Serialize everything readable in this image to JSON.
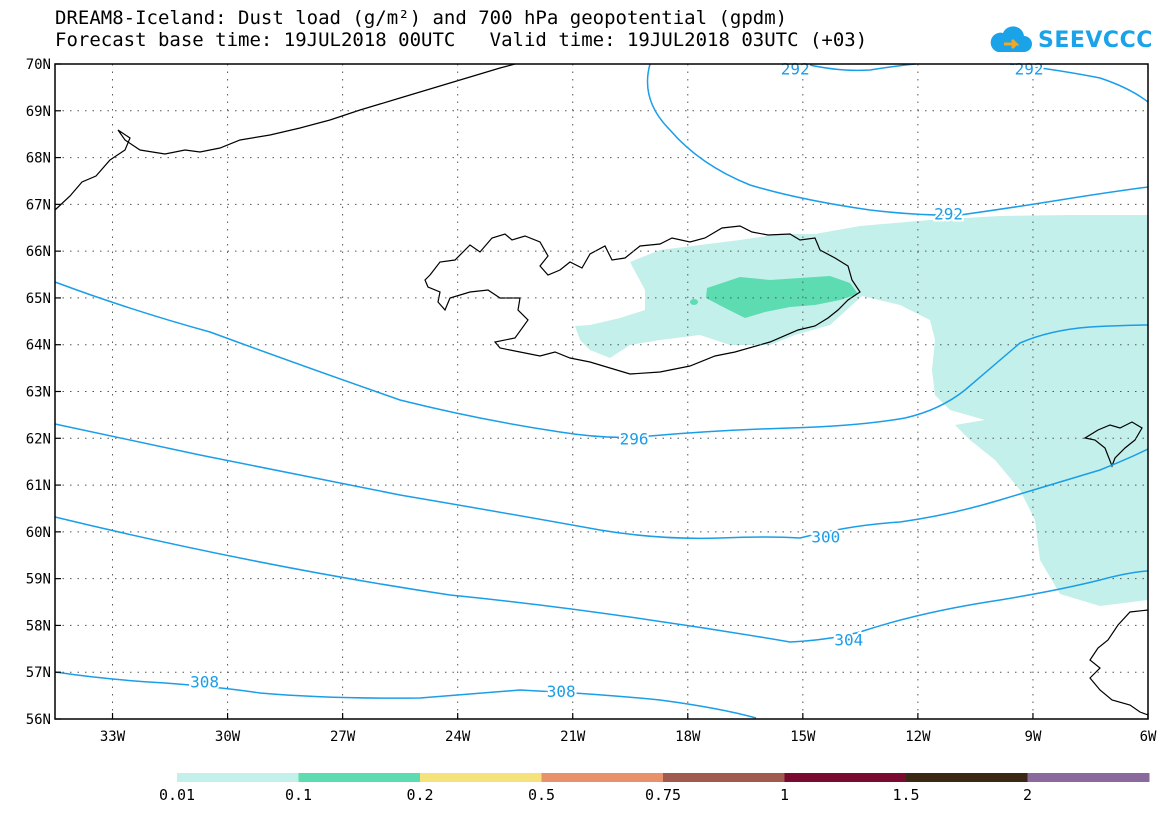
{
  "title_line1": "DREAM8-Iceland: Dust load (g/m²) and 700 hPa geopotential (gpdm)",
  "title_line2": "Forecast base time: 19JUL2018 00UTC   Valid time: 19JUL2018 03UTC (+03)",
  "logo_text": "SEEVCCC",
  "lat_labels": [
    "70N",
    "69N",
    "68N",
    "67N",
    "66N",
    "65N",
    "64N",
    "63N",
    "62N",
    "61N",
    "60N",
    "59N",
    "58N",
    "57N",
    "56N"
  ],
  "lon_labels": [
    "33W",
    "30W",
    "27W",
    "24W",
    "21W",
    "18W",
    "15W",
    "12W",
    "9W",
    "6W"
  ],
  "contour_labels": [
    {
      "value": "292",
      "lon": -15.2,
      "lat": 69.9
    },
    {
      "value": "292",
      "lon": -9.1,
      "lat": 69.9
    },
    {
      "value": "292",
      "lon": -11.2,
      "lat": 66.8
    },
    {
      "value": "296",
      "lon": -19.4,
      "lat": 62.0
    },
    {
      "value": "300",
      "lon": -14.4,
      "lat": 59.9
    },
    {
      "value": "304",
      "lon": -13.8,
      "lat": 57.7
    },
    {
      "value": "308",
      "lon": -30.6,
      "lat": 56.8
    },
    {
      "value": "308",
      "lon": -21.3,
      "lat": 56.6
    }
  ],
  "colorbar": {
    "colors": [
      "#c3f0ea",
      "#5cdcb0",
      "#f5e27a",
      "#e8916b",
      "#a15a4e",
      "#7b0a30",
      "#3b2814",
      "#8a6a9c"
    ],
    "labels": [
      {
        "text": "0.01",
        "pos": 0
      },
      {
        "text": "0.1",
        "pos": 1
      },
      {
        "text": "0.2",
        "pos": 2
      },
      {
        "text": "0.5",
        "pos": 3
      },
      {
        "text": "0.75",
        "pos": 4
      },
      {
        "text": "1",
        "pos": 5
      },
      {
        "text": "1.5",
        "pos": 6
      },
      {
        "text": "2",
        "pos": 7
      }
    ]
  },
  "colors": {
    "contour": "#1a9ee8",
    "dust_light": "#c3f0ea",
    "dust_mid": "#5cdcb0",
    "coast": "#000000",
    "grid": "#555555"
  }
}
